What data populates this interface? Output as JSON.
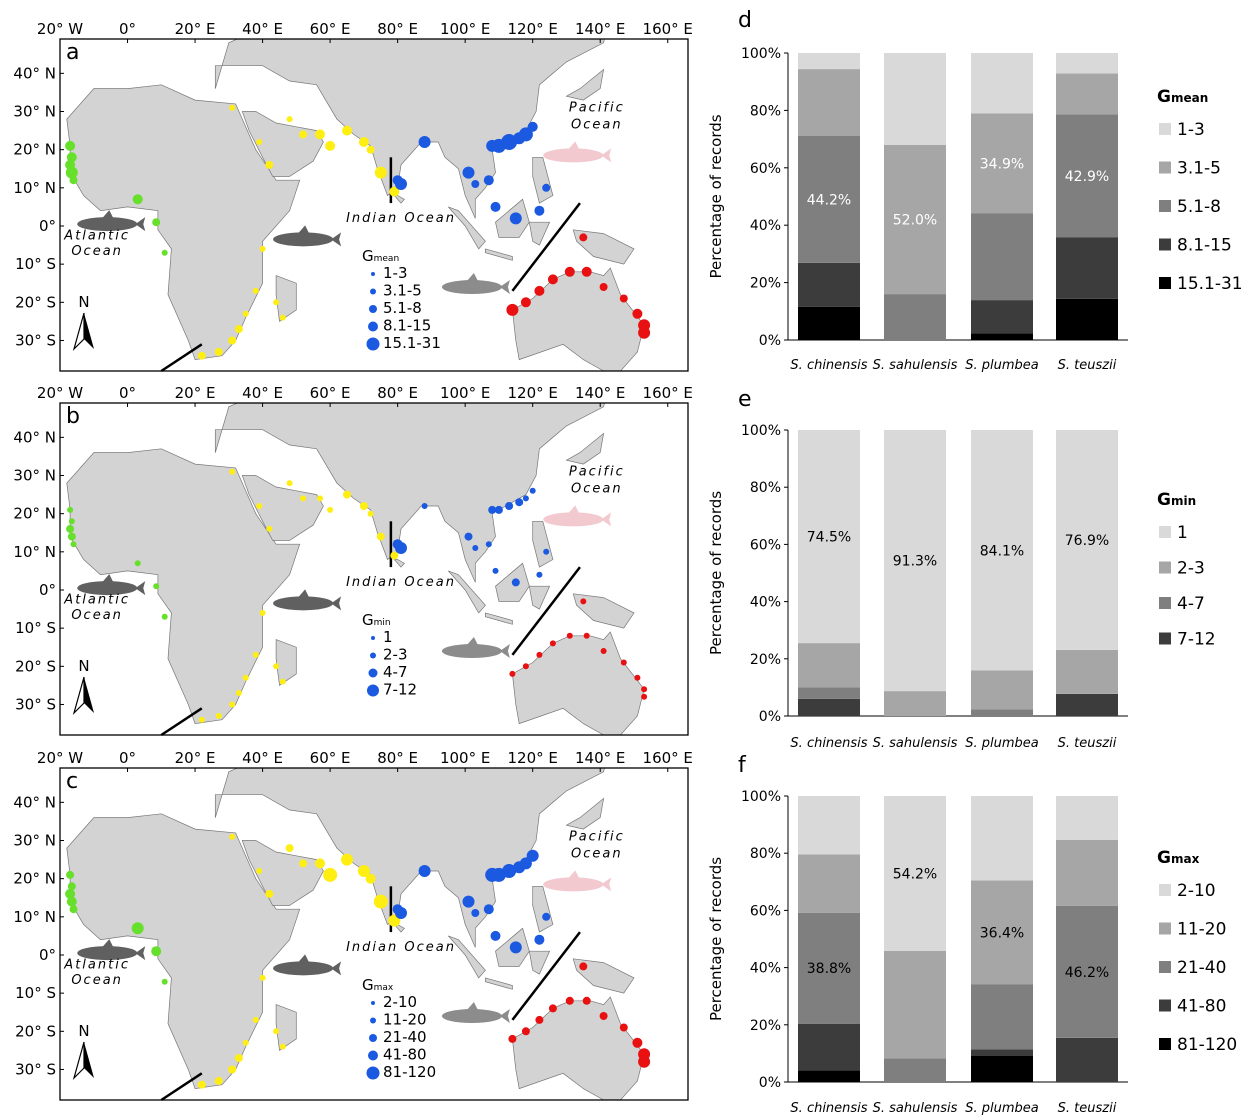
{
  "colors": {
    "ocean": "#ffffff",
    "land": "#d3d3d3",
    "green_population": "#66e02a",
    "yellow_population": "#ffee11",
    "blue_population": "#1a59e0",
    "red_population": "#e81010",
    "dolphin_grey": "#606060",
    "dolphin_pink": "#f1c9cf"
  },
  "maps": [
    {
      "letter": "a",
      "top_lon_labels": [
        "20° W",
        "0°",
        "20° E",
        "40° E",
        "60° E",
        "80° E",
        "100° E",
        "120° E",
        "140° E",
        "160° E"
      ],
      "lat_labels": [
        "40° N",
        "30° N",
        "20° N",
        "10° N",
        "0°",
        "10° S",
        "20° S",
        "30° S"
      ],
      "atlantic": [
        "Atlantic",
        "Ocean"
      ],
      "indian": "Indian Ocean",
      "pacific": [
        "Pacific",
        "Ocean"
      ],
      "north": "N",
      "legend_title_main": "G",
      "legend_title_sub": "mean",
      "legend": [
        "1-3",
        "3.1-5",
        "5.1-8",
        "8.1-15",
        "15.1-31"
      ]
    },
    {
      "letter": "b",
      "top_lon_labels": [
        "20° W",
        "0°",
        "20° E",
        "40° E",
        "60° E",
        "80° E",
        "100° E",
        "120° E",
        "140° E",
        "160° E"
      ],
      "lat_labels": [
        "40° N",
        "30° N",
        "20° N",
        "10° N",
        "0°",
        "10° S",
        "20° S",
        "30° S"
      ],
      "atlantic": [
        "Atlantic",
        "Ocean"
      ],
      "indian": "Indian Ocean",
      "pacific": [
        "Pacific",
        "Ocean"
      ],
      "north": "N",
      "legend_title_main": "G",
      "legend_title_sub": "min",
      "legend": [
        "1",
        "2-3",
        "4-7",
        "7-12"
      ]
    },
    {
      "letter": "c",
      "top_lon_labels": [
        "20° W",
        "0°",
        "20° E",
        "40° E",
        "60° E",
        "80° E",
        "100° E",
        "120° E",
        "140° E",
        "160° E"
      ],
      "lat_labels": [
        "40° N",
        "30° N",
        "20° N",
        "10° N",
        "0°",
        "10° S",
        "20° S",
        "30° S"
      ],
      "atlantic": [
        "Atlantic",
        "Ocean"
      ],
      "indian": "Indian Ocean",
      "pacific": [
        "Pacific",
        "Ocean"
      ],
      "north": "N",
      "legend_title_main": "G",
      "legend_title_sub": "max",
      "legend": [
        "2-10",
        "11-20",
        "21-40",
        "41-80",
        "81-120"
      ]
    }
  ],
  "chart_data": [
    {
      "type": "bar",
      "stacked": true,
      "letter": "d",
      "ylabel": "Percentage of records",
      "yticks": [
        "0%",
        "20%",
        "40%",
        "60%",
        "80%",
        "100%"
      ],
      "ylim": [
        0,
        100
      ],
      "categories": [
        "S. chinensis",
        "S. sahulensis",
        "S. plumbea",
        "S. teuszii"
      ],
      "legend_title_main": "G",
      "legend_title_sub": "mean",
      "series": [
        {
          "name": "15.1-31",
          "color": "#000000",
          "values": [
            11.6,
            0,
            2.3,
            14.3
          ]
        },
        {
          "name": "8.1-15",
          "color": "#3c3c3c",
          "values": [
            15.3,
            0,
            11.6,
            21.4
          ]
        },
        {
          "name": "5.1-8",
          "color": "#7f7f7f",
          "values": [
            44.2,
            16.0,
            30.2,
            42.9
          ]
        },
        {
          "name": "3.1-5",
          "color": "#a6a6a6",
          "values": [
            23.3,
            52.0,
            34.9,
            14.3
          ]
        },
        {
          "name": "1-3",
          "color": "#d9d9d9",
          "values": [
            5.6,
            32.0,
            21.0,
            7.1
          ]
        }
      ],
      "annotations": [
        {
          "category": "S. chinensis",
          "series": "5.1-8",
          "text": "44.2%",
          "color": "#ffffff"
        },
        {
          "category": "S. sahulensis",
          "series": "3.1-5",
          "text": "52.0%",
          "color": "#ffffff"
        },
        {
          "category": "S. plumbea",
          "series": "3.1-5",
          "text": "34.9%",
          "color": "#ffffff"
        },
        {
          "category": "S. teuszii",
          "series": "5.1-8",
          "text": "42.9%",
          "color": "#ffffff"
        }
      ]
    },
    {
      "type": "bar",
      "stacked": true,
      "letter": "e",
      "ylabel": "Percentage of records",
      "yticks": [
        "0%",
        "20%",
        "40%",
        "60%",
        "80%",
        "100%"
      ],
      "ylim": [
        0,
        100
      ],
      "categories": [
        "S. chinensis",
        "S. sahulensis",
        "S. plumbea",
        "S. teuszii"
      ],
      "legend_title_main": "G",
      "legend_title_sub": "min",
      "series": [
        {
          "name": "7-12",
          "color": "#3c3c3c",
          "values": [
            6.0,
            0,
            0,
            7.7
          ]
        },
        {
          "name": "4-7",
          "color": "#7f7f7f",
          "values": [
            4.0,
            0,
            2.3,
            0
          ]
        },
        {
          "name": "2-3",
          "color": "#a6a6a6",
          "values": [
            15.5,
            8.7,
            13.6,
            15.4
          ]
        },
        {
          "name": "1",
          "color": "#d9d9d9",
          "values": [
            74.5,
            91.3,
            84.1,
            76.9
          ]
        }
      ],
      "annotations": [
        {
          "category": "S. chinensis",
          "series": "1",
          "text": "74.5%",
          "color": "#000000"
        },
        {
          "category": "S. sahulensis",
          "series": "1",
          "text": "91.3%",
          "color": "#000000"
        },
        {
          "category": "S. plumbea",
          "series": "1",
          "text": "84.1%",
          "color": "#000000"
        },
        {
          "category": "S. teuszii",
          "series": "1",
          "text": "76.9%",
          "color": "#000000"
        }
      ]
    },
    {
      "type": "bar",
      "stacked": true,
      "letter": "f",
      "ylabel": "Percentage of records",
      "yticks": [
        "0%",
        "20%",
        "40%",
        "60%",
        "80%",
        "100%"
      ],
      "ylim": [
        0,
        100
      ],
      "categories": [
        "S. chinensis",
        "S. sahulensis",
        "S. plumbea",
        "S. teuszii"
      ],
      "legend_title_main": "G",
      "legend_title_sub": "max",
      "series": [
        {
          "name": "81-120",
          "color": "#000000",
          "values": [
            4.1,
            0,
            9.1,
            0
          ]
        },
        {
          "name": "41-80",
          "color": "#3c3c3c",
          "values": [
            16.3,
            0,
            2.3,
            15.4
          ]
        },
        {
          "name": "21-40",
          "color": "#7f7f7f",
          "values": [
            38.8,
            8.3,
            22.7,
            46.2
          ]
        },
        {
          "name": "11-20",
          "color": "#a6a6a6",
          "values": [
            20.4,
            37.5,
            36.4,
            23.1
          ]
        },
        {
          "name": "2-10",
          "color": "#d9d9d9",
          "values": [
            20.4,
            54.2,
            29.5,
            15.3
          ]
        }
      ],
      "annotations": [
        {
          "category": "S. chinensis",
          "series": "21-40",
          "text": "38.8%",
          "color": "#000000"
        },
        {
          "category": "S. sahulensis",
          "series": "2-10",
          "text": "54.2%",
          "color": "#000000"
        },
        {
          "category": "S. plumbea",
          "series": "11-20",
          "text": "36.4%",
          "color": "#000000"
        },
        {
          "category": "S. teuszii",
          "series": "21-40",
          "text": "46.2%",
          "color": "#000000"
        }
      ]
    }
  ]
}
